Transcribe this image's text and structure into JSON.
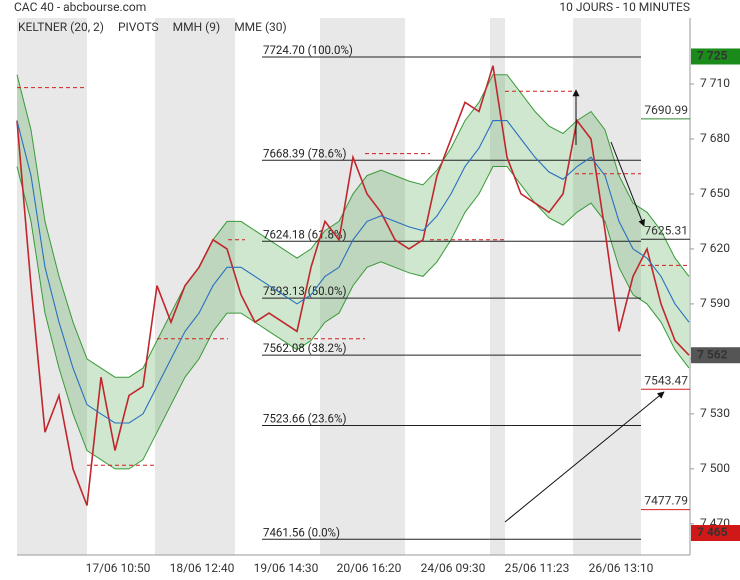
{
  "chart_data": {
    "type": "line",
    "title": "CAC 40 - abcbourse.com",
    "subtitle": "10 JOURS - 10 MINUTES",
    "ylim": [
      7453,
      7746
    ],
    "yticks": [
      {
        "value": 7470,
        "label": "7 470"
      },
      {
        "value": 7500,
        "label": "7 500"
      },
      {
        "value": 7530,
        "label": "7 530"
      },
      {
        "value": 7560,
        "label": "7 560"
      },
      {
        "value": 7590,
        "label": "7 590"
      },
      {
        "value": 7620,
        "label": "7 620"
      },
      {
        "value": 7650,
        "label": "7 650"
      },
      {
        "value": 7680,
        "label": "7 680"
      },
      {
        "value": 7710,
        "label": "7 710"
      }
    ],
    "x_labels": [
      "17/06 10:50",
      "18/06 12:40",
      "19/06 14:30",
      "20/06 16:20",
      "24/06 09:30",
      "25/06 11:23",
      "26/06 13:10"
    ],
    "series": [
      {
        "name": "KELTNER (20, 2)",
        "color": "#3a9a3a",
        "upper": [
          7715,
          7685,
          7635,
          7605,
          7580,
          7560,
          7555,
          7550,
          7550,
          7555,
          7570,
          7585,
          7600,
          7610,
          7625,
          7635,
          7635,
          7630,
          7625,
          7620,
          7615,
          7620,
          7630,
          7635,
          7650,
          7660,
          7663,
          7660,
          7657,
          7655,
          7663,
          7675,
          7690,
          7700,
          7715,
          7715,
          7705,
          7695,
          7687,
          7683,
          7690,
          7695,
          7685,
          7660,
          7645,
          7640,
          7630,
          7615,
          7605
        ],
        "lower": [
          7665,
          7635,
          7585,
          7555,
          7530,
          7510,
          7505,
          7500,
          7500,
          7505,
          7520,
          7535,
          7550,
          7560,
          7575,
          7585,
          7585,
          7580,
          7575,
          7570,
          7565,
          7570,
          7580,
          7585,
          7600,
          7610,
          7613,
          7610,
          7607,
          7605,
          7613,
          7625,
          7640,
          7650,
          7665,
          7665,
          7655,
          7645,
          7637,
          7633,
          7640,
          7645,
          7635,
          7610,
          7595,
          7590,
          7580,
          7565,
          7555
        ]
      },
      {
        "name": "PIVOTS",
        "color": "#222222",
        "values": [
          7708,
          7502,
          7571,
          7625,
          7571,
          7672,
          7625,
          7706,
          7661,
          7611
        ]
      },
      {
        "name": "MMH (9)",
        "color": "#c0272d",
        "values": [
          7690,
          7600,
          7520,
          7540,
          7500,
          7480,
          7550,
          7510,
          7540,
          7545,
          7600,
          7580,
          7600,
          7610,
          7625,
          7620,
          7595,
          7580,
          7585,
          7580,
          7575,
          7610,
          7635,
          7625,
          7670,
          7650,
          7640,
          7625,
          7620,
          7625,
          7660,
          7680,
          7700,
          7695,
          7720,
          7670,
          7650,
          7645,
          7640,
          7650,
          7690,
          7680,
          7630,
          7575,
          7605,
          7620,
          7590,
          7570,
          7562
        ]
      },
      {
        "name": "MME (30)",
        "color": "#2a6fc0",
        "values": [
          7690,
          7660,
          7610,
          7580,
          7555,
          7535,
          7530,
          7525,
          7525,
          7530,
          7545,
          7560,
          7575,
          7585,
          7600,
          7610,
          7610,
          7605,
          7600,
          7595,
          7590,
          7595,
          7605,
          7610,
          7625,
          7635,
          7638,
          7635,
          7632,
          7630,
          7638,
          7650,
          7665,
          7675,
          7690,
          7690,
          7680,
          7670,
          7662,
          7658,
          7665,
          7670,
          7660,
          7635,
          7620,
          7615,
          7605,
          7590,
          7580
        ]
      }
    ],
    "fib_levels": [
      {
        "value": 7724.7,
        "label": "7724.70  (100.0%)"
      },
      {
        "value": 7668.39,
        "label": "7668.39  (78.6%)"
      },
      {
        "value": 7624.18,
        "label": "7624.18  (61.8%)"
      },
      {
        "value": 7593.13,
        "label": "7593.13  (50.0%)"
      },
      {
        "value": 7562.08,
        "label": "7562.08  (38.2%)"
      },
      {
        "value": 7523.66,
        "label": "7523.66  (23.6%)"
      },
      {
        "value": 7461.56,
        "label": "7461.56  (0.0%)"
      }
    ],
    "pivot_labels": [
      {
        "value": 7690.99,
        "label": "7690.99",
        "color": "#2e8b2e"
      },
      {
        "value": 7625.31,
        "label": "7625.31",
        "color": "#222222"
      },
      {
        "value": 7543.47,
        "label": "7543.47",
        "color": "#d02020"
      },
      {
        "value": 7477.79,
        "label": "7477.79",
        "color": "#d02020"
      }
    ],
    "price_tags": [
      {
        "value": 7725,
        "label": "7 725",
        "color": "#1a8a1a"
      },
      {
        "value": 7562,
        "label": "7 562",
        "color": "#555555"
      },
      {
        "value": 7465,
        "label": "7 465",
        "color": "#d01818"
      }
    ]
  }
}
